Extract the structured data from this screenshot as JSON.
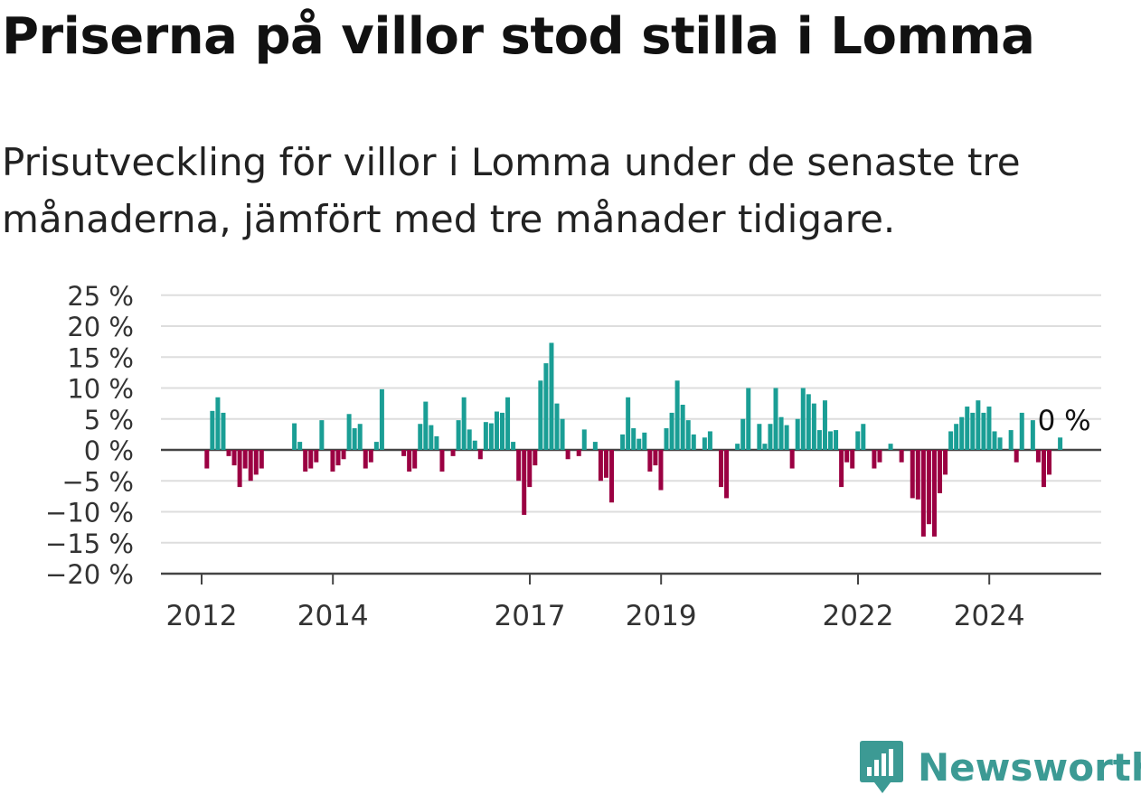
{
  "title": "Priserna på villor stod stilla i Lomma",
  "subtitle": "Prisutveckling för villor i Lomma under de senaste tre månaderna, jämfört med tre månader tidigare.",
  "brand": {
    "name": "Newsworthy",
    "icon": "newsworthy-logo-icon"
  },
  "colors": {
    "positive": "#1a9e95",
    "negative": "#9b0042",
    "grid": "#dddddd",
    "axis": "#444444",
    "brand": "#3c9a94"
  },
  "chart_data": {
    "type": "bar",
    "title": "Priserna på villor stod stilla i Lomma",
    "ylabel": "",
    "xlabel": "",
    "ylim": [
      -20,
      25
    ],
    "yticks": [
      25,
      20,
      15,
      10,
      5,
      0,
      -5,
      -10,
      -15,
      -20
    ],
    "ytick_labels": [
      "25 %",
      "20 %",
      "15 %",
      "10 %",
      "5 %",
      "0 %",
      "−5 %",
      "−10 %",
      "−15 %",
      "−20 %"
    ],
    "xticks": [
      {
        "label": "2012",
        "x": 2012.0
      },
      {
        "label": "2014",
        "x": 2014.0
      },
      {
        "label": "2017",
        "x": 2017.0
      },
      {
        "label": "2019",
        "x": 2019.0
      },
      {
        "label": "2022",
        "x": 2022.0
      },
      {
        "label": "2024",
        "x": 2024.0
      }
    ],
    "x_start": 2012.08,
    "x_step_months": 1,
    "values": [
      -3,
      6.3,
      8.5,
      6,
      -1,
      -2.5,
      -6,
      -3,
      -5,
      -4,
      -3,
      0,
      0,
      0,
      0,
      0,
      4.3,
      1.3,
      -3.5,
      -3,
      -2,
      4.8,
      0,
      -3.5,
      -2.5,
      -1.5,
      5.8,
      3.5,
      4.2,
      -3,
      -2,
      1.3,
      9.8,
      0,
      0,
      0,
      -1,
      -3.5,
      -3,
      4.2,
      7.8,
      4,
      2.2,
      -3.5,
      0,
      -1,
      4.8,
      8.5,
      3.3,
      1.5,
      -1.5,
      4.5,
      4.3,
      6.2,
      6,
      8.5,
      1.3,
      -5,
      -10.5,
      -6,
      -2.5,
      11.2,
      14,
      17.3,
      7.5,
      5,
      -1.5,
      0,
      -1,
      3.3,
      0,
      1.3,
      -5,
      -4.5,
      -8.5,
      0,
      2.5,
      8.5,
      3.5,
      1.8,
      2.8,
      -3.5,
      -2.5,
      -6.5,
      3.5,
      6,
      11.2,
      7.3,
      4.8,
      2.5,
      0,
      2,
      3,
      0,
      -6,
      -7.8,
      0,
      1,
      5,
      10,
      0,
      4.2,
      1,
      4.2,
      10,
      5.3,
      4,
      -3,
      5,
      10,
      9,
      7.5,
      3.2,
      8,
      3,
      3.2,
      -6,
      -2,
      -3,
      3,
      4.2,
      0,
      -3,
      -2,
      0,
      1,
      0,
      -2,
      0,
      -7.8,
      -8,
      -14,
      -12,
      -14,
      -7,
      -4,
      3,
      4.2,
      5.3,
      7,
      6,
      8,
      6,
      7,
      3,
      2,
      0,
      3.2,
      -2,
      6,
      0,
      4.8,
      -2,
      -6,
      -4,
      0,
      2
    ]
  },
  "end_label": "0 %"
}
